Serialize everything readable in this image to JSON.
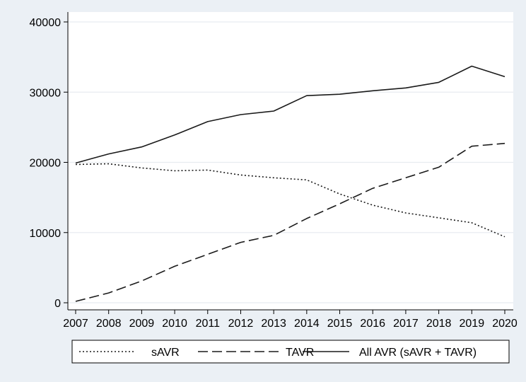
{
  "chart_data": {
    "type": "line",
    "title": "",
    "xlabel": "",
    "ylabel": "",
    "x": [
      2007,
      2008,
      2009,
      2010,
      2011,
      2012,
      2013,
      2014,
      2015,
      2016,
      2017,
      2018,
      2019,
      2020
    ],
    "ylim": [
      0,
      40000
    ],
    "yticks": [
      0,
      10000,
      20000,
      30000,
      40000
    ],
    "xticks": [
      2007,
      2008,
      2009,
      2010,
      2011,
      2012,
      2013,
      2014,
      2015,
      2016,
      2017,
      2018,
      2019,
      2020
    ],
    "grid": "horizontal",
    "legend_position": "bottom",
    "series": [
      {
        "name": "sAVR",
        "dash": "dotted",
        "values": [
          19700,
          19800,
          19200,
          18800,
          18900,
          18200,
          17800,
          17500,
          15500,
          13900,
          12800,
          12100,
          11400,
          9400
        ]
      },
      {
        "name": "TAVR",
        "dash": "dashed",
        "values": [
          200,
          1400,
          3100,
          5200,
          6900,
          8600,
          9600,
          12000,
          14100,
          16300,
          17800,
          19300,
          22300,
          22700
        ]
      },
      {
        "name": "All AVR (sAVR + TAVR)",
        "dash": "solid",
        "values": [
          19900,
          21200,
          22200,
          23900,
          25800,
          26800,
          27300,
          29500,
          29700,
          30200,
          30600,
          31400,
          33700,
          32200
        ]
      }
    ],
    "colors": {
      "line": "#1a1a1a",
      "grid": "#ffffff",
      "plot_background": "#ffffff",
      "page_background": "#ebf0f5"
    }
  }
}
